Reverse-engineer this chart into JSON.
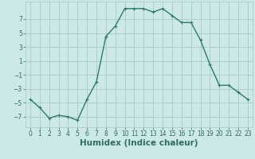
{
  "x": [
    0,
    1,
    2,
    3,
    4,
    5,
    6,
    7,
    8,
    9,
    10,
    11,
    12,
    13,
    14,
    15,
    16,
    17,
    18,
    19,
    20,
    21,
    22,
    23
  ],
  "y": [
    -4.5,
    -5.7,
    -7.2,
    -6.8,
    -7.0,
    -7.5,
    -4.5,
    -2.0,
    4.5,
    6.0,
    8.5,
    8.5,
    8.5,
    8.0,
    8.5,
    7.5,
    6.5,
    6.5,
    4.0,
    0.5,
    -2.5,
    -2.5,
    -3.5,
    -4.5
  ],
  "line_color": "#2d7a6e",
  "marker": "+",
  "marker_size": 3,
  "bg_color": "#cce8e8",
  "grid_color": "#aac8c8",
  "xlabel": "Humidex (Indice chaleur)",
  "xlim": [
    -0.5,
    23.5
  ],
  "ylim": [
    -8.5,
    9.5
  ],
  "yticks": [
    -7,
    -5,
    -3,
    -1,
    1,
    3,
    5,
    7
  ],
  "xticks": [
    0,
    1,
    2,
    3,
    4,
    5,
    6,
    7,
    8,
    9,
    10,
    11,
    12,
    13,
    14,
    15,
    16,
    17,
    18,
    19,
    20,
    21,
    22,
    23
  ],
  "tick_fontsize": 5.5,
  "xlabel_fontsize": 7.5,
  "label_color": "#2d6e60"
}
